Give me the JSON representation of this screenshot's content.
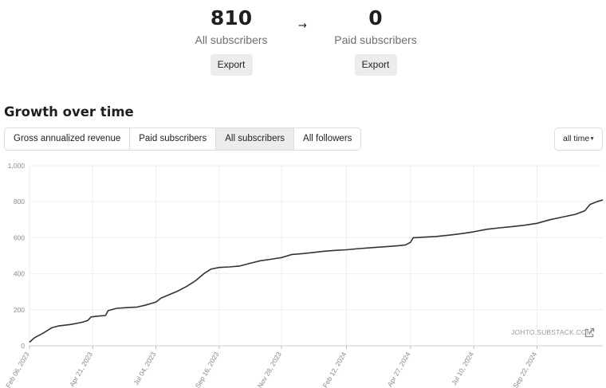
{
  "summary": {
    "all": {
      "count": "810",
      "label": "All subscribers",
      "export_label": "Export"
    },
    "arrow": "→",
    "paid": {
      "count": "0",
      "label": "Paid subscribers",
      "export_label": "Export"
    }
  },
  "section_title": "Growth over time",
  "tabs": [
    {
      "label": "Gross annualized revenue",
      "active": false
    },
    {
      "label": "Paid subscribers",
      "active": false
    },
    {
      "label": "All subscribers",
      "active": true
    },
    {
      "label": "All followers",
      "active": false
    }
  ],
  "range_select": {
    "value": "all time",
    "caret": "▼"
  },
  "watermark": "JOHTO.SUBSTACK.COM",
  "colors": {
    "line": "#333333",
    "grid": "#eeeeee",
    "tab_active_bg": "#ececec",
    "axis_text": "#8a8a8a"
  },
  "chart_data": {
    "type": "line",
    "y_ticks": [
      "0",
      "200",
      "400",
      "600",
      "800",
      "1,000"
    ],
    "ylim": [
      0,
      1000
    ],
    "x_tick_labels": [
      "Feb 06, 2023",
      "Apr 21, 2023",
      "Jul 04, 2023",
      "Sep 16, 2023",
      "Nov 28, 2023",
      "Feb 12, 2024",
      "Apr 27, 2024",
      "Jul 10, 2024",
      "Sep 22, 2024"
    ],
    "x_tick_dates": [
      "2023-02-06",
      "2023-04-21",
      "2023-07-04",
      "2023-09-16",
      "2023-11-28",
      "2024-02-12",
      "2024-04-27",
      "2024-07-10",
      "2024-09-22"
    ],
    "xlim": [
      "2023-02-06",
      "2024-12-08"
    ],
    "grid": true,
    "series": [
      {
        "points": [
          [
            "2023-02-06",
            20
          ],
          [
            "2023-02-12",
            45
          ],
          [
            "2023-02-22",
            70
          ],
          [
            "2023-03-04",
            100
          ],
          [
            "2023-03-12",
            110
          ],
          [
            "2023-03-26",
            118
          ],
          [
            "2023-04-08",
            130
          ],
          [
            "2023-04-15",
            140
          ],
          [
            "2023-04-19",
            160
          ],
          [
            "2023-04-28",
            165
          ],
          [
            "2023-05-06",
            168
          ],
          [
            "2023-05-09",
            195
          ],
          [
            "2023-05-19",
            208
          ],
          [
            "2023-05-31",
            212
          ],
          [
            "2023-06-12",
            215
          ],
          [
            "2023-06-21",
            225
          ],
          [
            "2023-07-04",
            243
          ],
          [
            "2023-07-10",
            265
          ],
          [
            "2023-07-20",
            285
          ],
          [
            "2023-07-30",
            305
          ],
          [
            "2023-08-09",
            330
          ],
          [
            "2023-08-19",
            360
          ],
          [
            "2023-08-29",
            400
          ],
          [
            "2023-09-06",
            425
          ],
          [
            "2023-09-16",
            435
          ],
          [
            "2023-09-28",
            438
          ],
          [
            "2023-10-10",
            443
          ],
          [
            "2023-10-22",
            458
          ],
          [
            "2023-11-03",
            472
          ],
          [
            "2023-11-15",
            480
          ],
          [
            "2023-11-28",
            490
          ],
          [
            "2023-12-10",
            507
          ],
          [
            "2023-12-23",
            512
          ],
          [
            "2024-01-04",
            518
          ],
          [
            "2024-01-17",
            525
          ],
          [
            "2024-01-31",
            530
          ],
          [
            "2024-02-12",
            533
          ],
          [
            "2024-02-27",
            540
          ],
          [
            "2024-03-13",
            545
          ],
          [
            "2024-03-28",
            550
          ],
          [
            "2024-04-11",
            555
          ],
          [
            "2024-04-21",
            560
          ],
          [
            "2024-04-27",
            575
          ],
          [
            "2024-04-30",
            600
          ],
          [
            "2024-05-12",
            603
          ],
          [
            "2024-05-27",
            607
          ],
          [
            "2024-06-11",
            614
          ],
          [
            "2024-06-26",
            623
          ],
          [
            "2024-07-10",
            633
          ],
          [
            "2024-07-25",
            647
          ],
          [
            "2024-08-09",
            655
          ],
          [
            "2024-08-24",
            662
          ],
          [
            "2024-09-08",
            670
          ],
          [
            "2024-09-22",
            680
          ],
          [
            "2024-10-07",
            700
          ],
          [
            "2024-10-22",
            715
          ],
          [
            "2024-11-06",
            730
          ],
          [
            "2024-11-17",
            750
          ],
          [
            "2024-11-23",
            785
          ],
          [
            "2024-12-01",
            800
          ],
          [
            "2024-12-08",
            810
          ]
        ]
      }
    ]
  }
}
